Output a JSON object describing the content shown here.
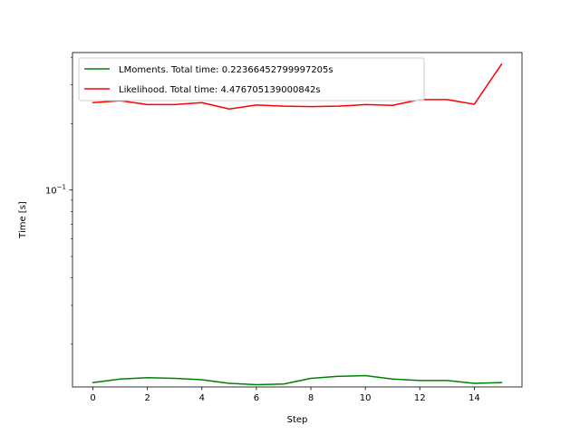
{
  "chart_data": {
    "type": "line",
    "title": "",
    "xlabel": "Step",
    "ylabel": "Time [s]",
    "yscale": "log",
    "xlim": [
      -0.75,
      15.75
    ],
    "ylim": [
      0.0128,
      0.42
    ],
    "x": [
      0,
      1,
      2,
      3,
      4,
      5,
      6,
      7,
      8,
      9,
      10,
      11,
      12,
      13,
      14,
      15
    ],
    "x_ticks": [
      0,
      2,
      4,
      6,
      8,
      10,
      12,
      14
    ],
    "x_tick_labels": [
      "0",
      "2",
      "4",
      "6",
      "8",
      "10",
      "12",
      "14"
    ],
    "y_ticks": [
      0.1
    ],
    "y_tick_labels": [
      "10",
      "−1"
    ],
    "grid": false,
    "legend_position": "upper-left",
    "series": [
      {
        "name": "LMoments. Total time: 0.22366452799997205s",
        "color": "#008000",
        "values": [
          0.0134,
          0.0139,
          0.0141,
          0.014,
          0.0138,
          0.0133,
          0.0131,
          0.0132,
          0.014,
          0.0143,
          0.0144,
          0.0139,
          0.0137,
          0.0137,
          0.0133,
          0.0134
        ]
      },
      {
        "name": "Likelihood. Total time: 4.476705139000842s",
        "color": "#ff0000",
        "values": [
          0.249,
          0.254,
          0.244,
          0.244,
          0.249,
          0.233,
          0.243,
          0.24,
          0.239,
          0.24,
          0.244,
          0.242,
          0.257,
          0.257,
          0.245,
          0.372
        ]
      }
    ]
  }
}
